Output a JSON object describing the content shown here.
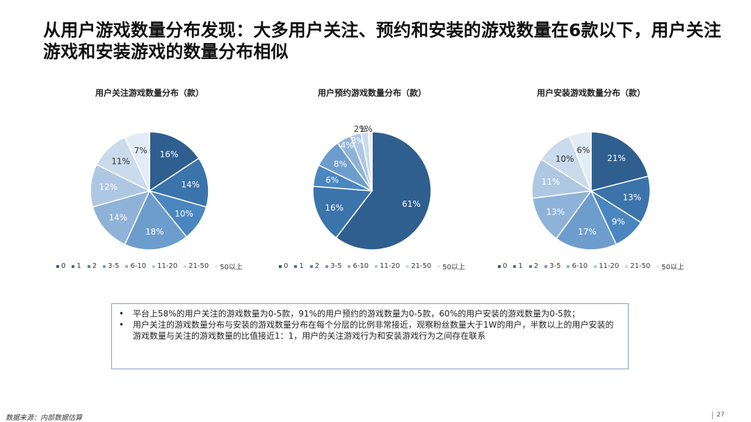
{
  "page": {
    "title": "从用户游戏数量分布发现：大多用户关注、预约和安装的游戏数量在6款以下，用户关注游戏和安装游戏的数量分布相似",
    "notes": [
      "平台上58%的用户关注的游戏数量为0-5款，91%的用户预约的游戏数量为0-5款，60%的用户安装的游戏数量为0-5款；",
      "用户关注的游戏数量分布与安装的游戏数量分布在每个分层的比例非常接近，观察粉丝数量大于1W的用户，半数以上的用户安装的游戏数量与关注的游戏数量的比值接近1：1，用户的关注游戏行为和安装游戏行为之间存在联系"
    ],
    "bullet_glyph": "•",
    "source": "数据来源：内部数据估算",
    "page_number": "27"
  },
  "colors": [
    "#2e5f8f",
    "#3b74aa",
    "#4a86bf",
    "#6d9dcc",
    "#8fb3d8",
    "#aec8e3",
    "#c9dbed",
    "#e3ecf6"
  ],
  "chart_data": [
    {
      "type": "pie",
      "title": "用户关注游戏数量分布（款）",
      "categories": [
        "0",
        "1",
        "2",
        "3-5",
        "6-10",
        "11-20",
        "21-50",
        "50以上"
      ],
      "values": [
        16,
        14,
        10,
        18,
        14,
        12,
        11,
        7
      ],
      "labels": [
        "16%",
        "14%",
        "10%",
        "18%",
        "14%",
        "12%",
        "11%",
        "7%"
      ]
    },
    {
      "type": "pie",
      "title": "用户预约游戏数量分布（款）",
      "categories": [
        "0",
        "1",
        "2",
        "3-5",
        "6-10",
        "11-20",
        "21-50",
        "50以上"
      ],
      "values": [
        61,
        16,
        6,
        8,
        4,
        3,
        2,
        1
      ],
      "labels": [
        "61%",
        "16%",
        "6%",
        "8%",
        "4%",
        "3%",
        "2%",
        "1%"
      ]
    },
    {
      "type": "pie",
      "title": "用户安装游戏数量分布（款）",
      "categories": [
        "0",
        "1",
        "2",
        "3-5",
        "6-10",
        "11-20",
        "21-50",
        "50以上"
      ],
      "values": [
        21,
        13,
        9,
        17,
        13,
        11,
        10,
        6
      ],
      "labels": [
        "21%",
        "13%",
        "9%",
        "17%",
        "13%",
        "11%",
        "10%",
        "6%"
      ]
    }
  ]
}
